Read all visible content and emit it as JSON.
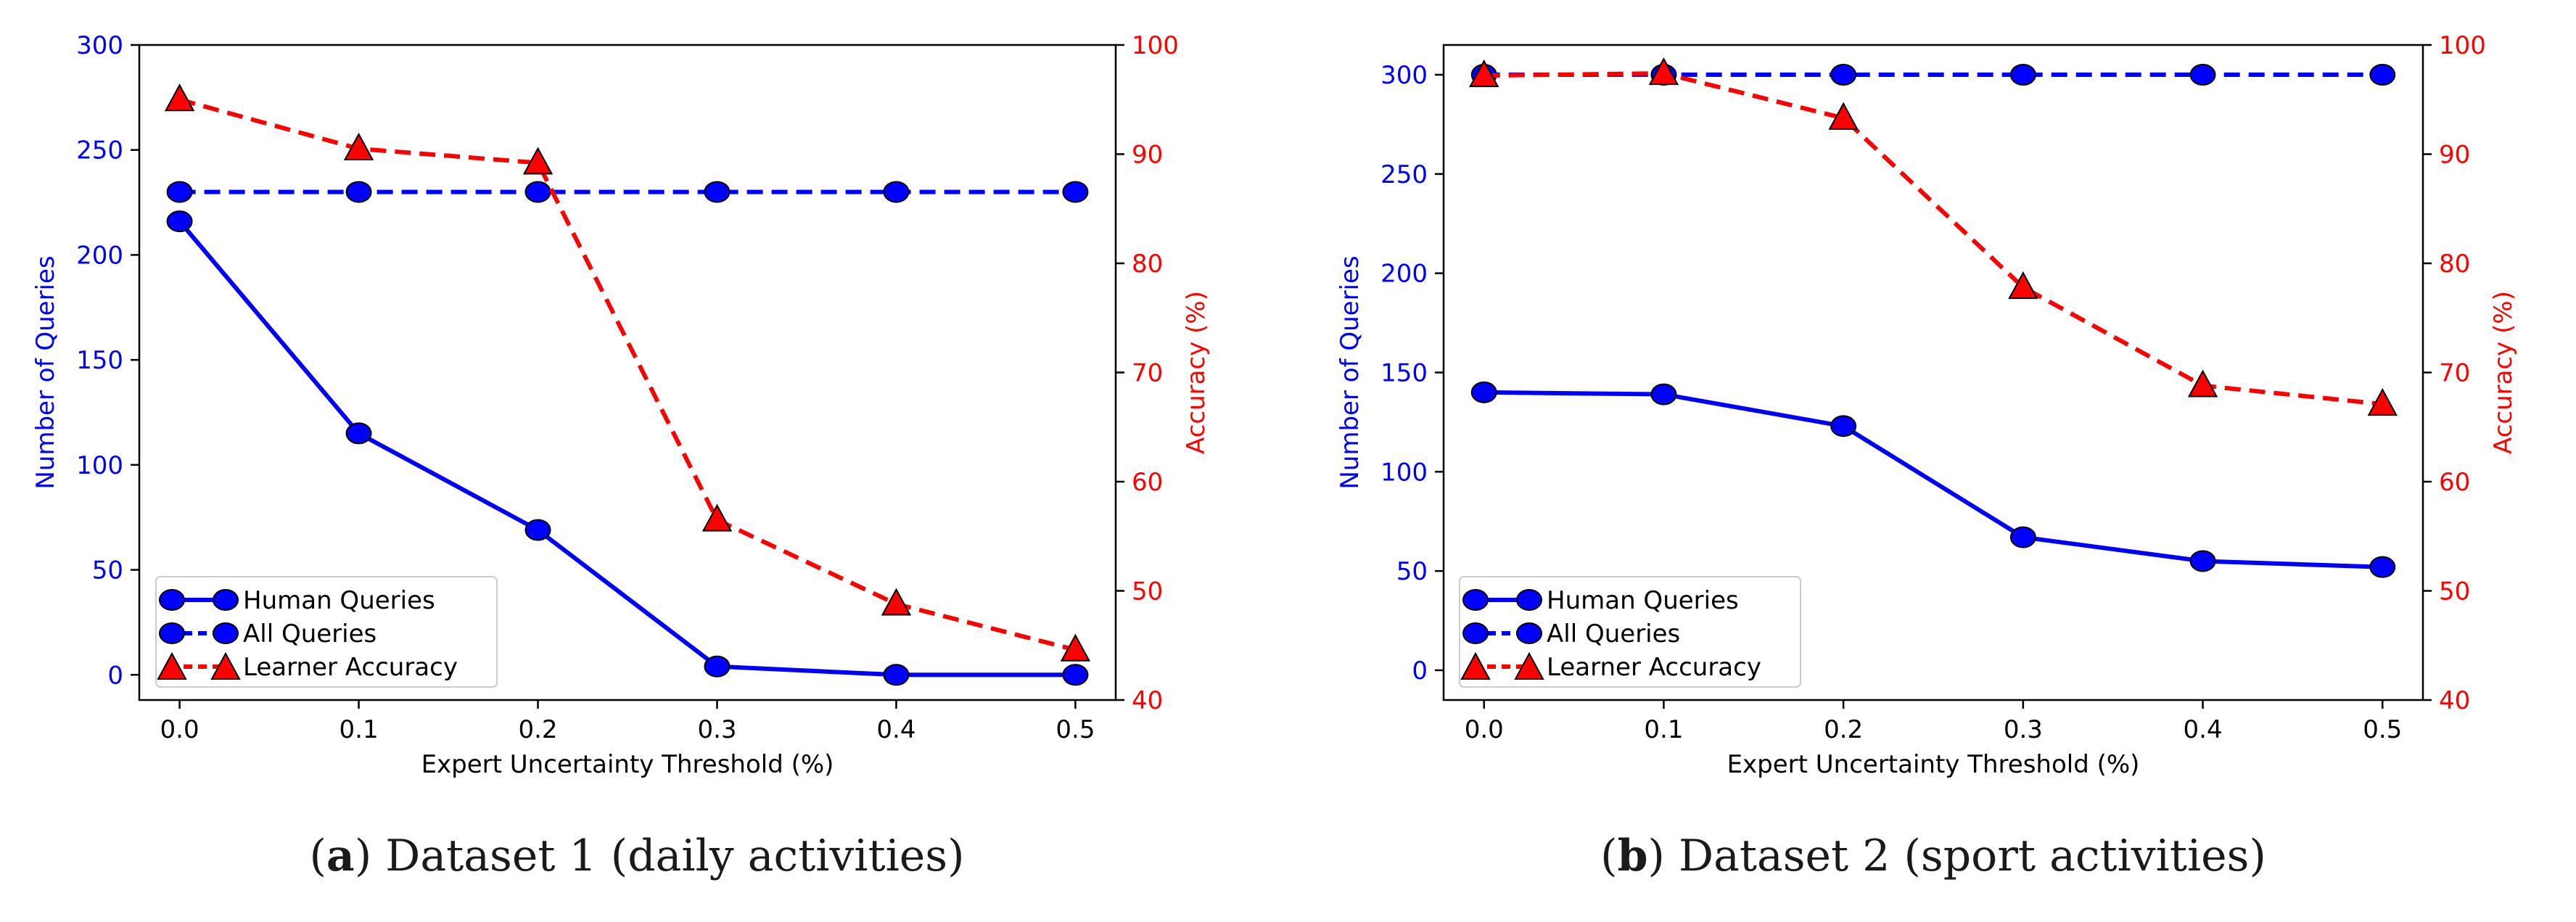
{
  "colors": {
    "human": "#0000ff",
    "all": "#0000ff",
    "accuracy": "#ff0000",
    "axis": "#000000"
  },
  "chart_data": [
    {
      "type": "line",
      "panel_letter": "a",
      "caption": "Dataset 1 (daily activities)",
      "xlabel": "Expert Uncertainty Threshold (%)",
      "ylabel_left": "Number of Queries",
      "ylabel_right": "Accuracy (%)",
      "x": [
        0.0,
        0.1,
        0.2,
        0.3,
        0.4,
        0.5
      ],
      "x_ticks": [
        "0.0",
        "0.1",
        "0.2",
        "0.3",
        "0.4",
        "0.5"
      ],
      "ylim_left": [
        -12,
        300
      ],
      "yticks_left": [
        0,
        50,
        100,
        150,
        200,
        250,
        300
      ],
      "ylim_right": [
        40,
        100
      ],
      "yticks_right": [
        40,
        50,
        60,
        70,
        80,
        90,
        100
      ],
      "legend_position": "lower-left",
      "series": [
        {
          "name": "Human Queries",
          "axis": "left",
          "style": "solid",
          "marker": "circle",
          "values": [
            216,
            115,
            69,
            4,
            0,
            0
          ]
        },
        {
          "name": "All Queries",
          "axis": "left",
          "style": "dashed",
          "marker": "circle",
          "values": [
            230,
            230,
            230,
            230,
            230,
            230
          ]
        },
        {
          "name": "Learner Accuracy",
          "axis": "right",
          "style": "dashed",
          "marker": "triangle",
          "values": [
            95,
            90.5,
            89.2,
            56.5,
            48.8,
            44.6
          ]
        }
      ]
    },
    {
      "type": "line",
      "panel_letter": "b",
      "caption": "Dataset 2 (sport activities)",
      "xlabel": "Expert Uncertainty Threshold (%)",
      "ylabel_left": "Number of Queries",
      "ylabel_right": "Accuracy (%)",
      "x": [
        0.0,
        0.1,
        0.2,
        0.3,
        0.4,
        0.5
      ],
      "x_ticks": [
        "0.0",
        "0.1",
        "0.2",
        "0.3",
        "0.4",
        "0.5"
      ],
      "ylim_left": [
        -15,
        315
      ],
      "yticks_left": [
        0,
        50,
        100,
        150,
        200,
        250,
        300
      ],
      "ylim_right": [
        40,
        100
      ],
      "yticks_right": [
        40,
        50,
        60,
        70,
        80,
        90,
        100
      ],
      "legend_position": "lower-left",
      "series": [
        {
          "name": "Human Queries",
          "axis": "left",
          "style": "solid",
          "marker": "circle",
          "values": [
            140,
            139,
            123,
            67,
            55,
            52
          ]
        },
        {
          "name": "All Queries",
          "axis": "left",
          "style": "dashed",
          "marker": "circle",
          "values": [
            300,
            300,
            300,
            300,
            300,
            300
          ]
        },
        {
          "name": "Learner Accuracy",
          "axis": "right",
          "style": "dashed",
          "marker": "triangle",
          "values": [
            97.2,
            97.4,
            93.3,
            77.8,
            68.8,
            67.1
          ]
        }
      ]
    }
  ]
}
